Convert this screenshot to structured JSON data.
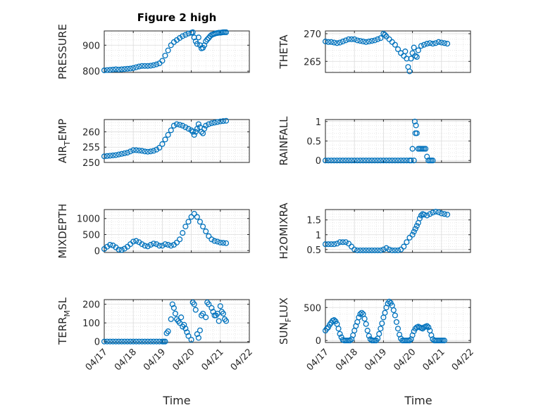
{
  "title": "Figure 2 high",
  "xlabel": "Time",
  "marker_color": "#0072bd",
  "x_tick_labels": [
    "04/17",
    "04/18",
    "04/19",
    "04/20",
    "04/21",
    "04/22"
  ],
  "chart_data": [
    {
      "type": "scatter",
      "ylabel": "PRESSURE",
      "ylim": [
        795,
        955
      ],
      "yticks": [
        800,
        900
      ],
      "xlim": [
        "04/17",
        "04/22"
      ],
      "grid": true,
      "x": [
        0.0,
        0.1,
        0.2,
        0.3,
        0.4,
        0.5,
        0.6,
        0.7,
        0.8,
        0.9,
        1.0,
        1.1,
        1.2,
        1.3,
        1.4,
        1.5,
        1.6,
        1.7,
        1.8,
        1.9,
        2.0,
        2.1,
        2.2,
        2.3,
        2.4,
        2.5,
        2.6,
        2.7,
        2.8,
        2.9,
        3.0,
        3.05,
        3.1,
        3.15,
        3.2,
        3.25,
        3.3,
        3.35,
        3.4,
        3.45,
        3.5,
        3.55,
        3.6,
        3.65,
        3.7,
        3.75,
        3.8,
        3.85,
        3.9,
        3.95,
        4.0,
        4.05,
        4.1,
        4.15,
        4.2
      ],
      "y": [
        803,
        804,
        805,
        806,
        807,
        806,
        807,
        808,
        809,
        810,
        812,
        815,
        818,
        820,
        820,
        820,
        821,
        823,
        826,
        830,
        840,
        860,
        880,
        900,
        912,
        920,
        928,
        935,
        940,
        945,
        948,
        950,
        930,
        915,
        905,
        930,
        900,
        888,
        890,
        900,
        915,
        922,
        928,
        935,
        940,
        942,
        944,
        946,
        947,
        948,
        948,
        949,
        950,
        950,
        950
      ]
    },
    {
      "type": "scatter",
      "ylabel": "THETA",
      "ylim": [
        263,
        270.5
      ],
      "yticks": [
        265,
        270
      ],
      "xlim": [
        "04/17",
        "04/22"
      ],
      "grid": true,
      "x": [
        0.0,
        0.1,
        0.2,
        0.3,
        0.4,
        0.5,
        0.6,
        0.7,
        0.8,
        0.9,
        1.0,
        1.1,
        1.2,
        1.3,
        1.4,
        1.5,
        1.6,
        1.7,
        1.8,
        1.9,
        2.0,
        2.05,
        2.1,
        2.2,
        2.3,
        2.4,
        2.5,
        2.6,
        2.7,
        2.75,
        2.8,
        2.85,
        2.9,
        2.95,
        3.0,
        3.05,
        3.1,
        3.15,
        3.2,
        3.3,
        3.4,
        3.5,
        3.6,
        3.7,
        3.8,
        3.9,
        4.0,
        4.1,
        4.2
      ],
      "y": [
        268.6,
        268.5,
        268.5,
        268.4,
        268.3,
        268.4,
        268.6,
        268.8,
        269.0,
        269.0,
        269.0,
        268.8,
        268.7,
        268.6,
        268.5,
        268.6,
        268.7,
        268.8,
        269.0,
        269.2,
        270.0,
        269.8,
        269.5,
        269.0,
        268.5,
        268.0,
        267.2,
        266.5,
        266.0,
        266.8,
        265.5,
        264.0,
        263.2,
        265.5,
        266.5,
        267.5,
        266.0,
        265.8,
        267.0,
        267.8,
        268.0,
        268.2,
        268.3,
        268.2,
        268.3,
        268.5,
        268.4,
        268.3,
        268.2
      ]
    },
    {
      "type": "scatter",
      "ylabel": "AIR_TEMP",
      "ylim": [
        250,
        264
      ],
      "yticks": [
        250,
        255,
        260
      ],
      "xlim": [
        "04/17",
        "04/22"
      ],
      "grid": true,
      "x": [
        0.0,
        0.1,
        0.2,
        0.3,
        0.4,
        0.5,
        0.6,
        0.7,
        0.8,
        0.9,
        1.0,
        1.1,
        1.2,
        1.3,
        1.4,
        1.5,
        1.6,
        1.7,
        1.8,
        1.9,
        2.0,
        2.1,
        2.2,
        2.3,
        2.4,
        2.5,
        2.6,
        2.7,
        2.8,
        2.9,
        3.0,
        3.05,
        3.1,
        3.15,
        3.2,
        3.25,
        3.3,
        3.35,
        3.4,
        3.45,
        3.5,
        3.6,
        3.7,
        3.8,
        3.9,
        4.0,
        4.1,
        4.2
      ],
      "y": [
        252.0,
        252.1,
        252.2,
        252.3,
        252.4,
        252.6,
        252.8,
        253.0,
        253.2,
        253.6,
        254.0,
        254.0,
        253.9,
        253.8,
        253.6,
        253.5,
        253.6,
        253.8,
        254.2,
        254.8,
        256.0,
        257.5,
        259.0,
        260.5,
        262.0,
        262.5,
        262.3,
        262.0,
        261.5,
        261.0,
        260.5,
        260.0,
        259.0,
        260.0,
        261.0,
        262.5,
        261.5,
        260.0,
        259.5,
        261.0,
        262.0,
        262.5,
        262.8,
        263.0,
        263.2,
        263.4,
        263.5,
        263.6
      ]
    },
    {
      "type": "scatter",
      "ylabel": "RAINFALL",
      "ylim": [
        -0.05,
        1.05
      ],
      "yticks": [
        0,
        0.5,
        1
      ],
      "xlim": [
        "04/17",
        "04/22"
      ],
      "grid": true,
      "x": [
        0.0,
        0.1,
        0.2,
        0.3,
        0.4,
        0.5,
        0.6,
        0.7,
        0.8,
        0.9,
        1.0,
        1.1,
        1.2,
        1.3,
        1.4,
        1.5,
        1.6,
        1.7,
        1.8,
        1.9,
        2.0,
        2.1,
        2.2,
        2.3,
        2.4,
        2.5,
        2.6,
        2.7,
        2.8,
        2.9,
        2.95,
        3.0,
        3.05,
        3.08,
        3.1,
        3.12,
        3.15,
        3.2,
        3.25,
        3.3,
        3.35,
        3.4,
        3.45,
        3.5,
        3.55,
        3.6,
        3.65,
        3.7
      ],
      "y": [
        0,
        0,
        0,
        0,
        0,
        0,
        0,
        0,
        0,
        0,
        0,
        0,
        0,
        0,
        0,
        0,
        0,
        0,
        0,
        0,
        0,
        0,
        0,
        0,
        0,
        0,
        0,
        0,
        0,
        0,
        0,
        0.3,
        0,
        1.0,
        0.7,
        0.9,
        0.7,
        0.3,
        0.3,
        0.3,
        0.3,
        0.3,
        0.3,
        0.1,
        0,
        0,
        0,
        0
      ]
    },
    {
      "type": "scatter",
      "ylabel": "MIXDEPTH",
      "ylim": [
        -60,
        1280
      ],
      "yticks": [
        0,
        500,
        1000
      ],
      "xlim": [
        "04/17",
        "04/22"
      ],
      "grid": true,
      "x": [
        0.0,
        0.1,
        0.2,
        0.3,
        0.4,
        0.5,
        0.6,
        0.7,
        0.8,
        0.9,
        1.0,
        1.1,
        1.2,
        1.3,
        1.4,
        1.5,
        1.6,
        1.7,
        1.8,
        1.9,
        2.0,
        2.1,
        2.2,
        2.3,
        2.4,
        2.5,
        2.6,
        2.7,
        2.8,
        2.9,
        3.0,
        3.1,
        3.2,
        3.3,
        3.4,
        3.5,
        3.6,
        3.7,
        3.8,
        3.9,
        4.0,
        4.1,
        4.2
      ],
      "y": [
        50,
        120,
        180,
        160,
        100,
        30,
        20,
        60,
        120,
        200,
        280,
        300,
        260,
        200,
        150,
        130,
        180,
        220,
        200,
        150,
        150,
        200,
        180,
        150,
        180,
        250,
        350,
        550,
        750,
        900,
        1050,
        1150,
        1050,
        900,
        750,
        600,
        450,
        350,
        300,
        280,
        250,
        240,
        230
      ]
    },
    {
      "type": "scatter",
      "ylabel": "H2OMIXRA",
      "ylim": [
        0.4,
        1.85
      ],
      "yticks": [
        0.5,
        1,
        1.5
      ],
      "xlim": [
        "04/17",
        "04/22"
      ],
      "grid": true,
      "x": [
        0.0,
        0.1,
        0.2,
        0.3,
        0.4,
        0.5,
        0.6,
        0.7,
        0.8,
        0.9,
        1.0,
        1.1,
        1.2,
        1.3,
        1.4,
        1.5,
        1.6,
        1.7,
        1.8,
        1.9,
        2.0,
        2.1,
        2.2,
        2.3,
        2.4,
        2.5,
        2.6,
        2.7,
        2.8,
        2.9,
        3.0,
        3.05,
        3.1,
        3.15,
        3.2,
        3.25,
        3.3,
        3.35,
        3.4,
        3.5,
        3.6,
        3.7,
        3.8,
        3.9,
        4.0,
        4.1,
        4.2
      ],
      "y": [
        0.68,
        0.68,
        0.68,
        0.68,
        0.7,
        0.75,
        0.75,
        0.75,
        0.7,
        0.6,
        0.5,
        0.47,
        0.47,
        0.47,
        0.47,
        0.47,
        0.47,
        0.47,
        0.47,
        0.47,
        0.5,
        0.55,
        0.5,
        0.47,
        0.47,
        0.47,
        0.5,
        0.6,
        0.75,
        0.9,
        1.0,
        1.1,
        1.2,
        1.3,
        1.4,
        1.55,
        1.65,
        1.7,
        1.68,
        1.65,
        1.7,
        1.75,
        1.78,
        1.76,
        1.72,
        1.7,
        1.68
      ]
    },
    {
      "type": "scatter",
      "ylabel": "TERR_MSL",
      "ylim": [
        -5,
        225
      ],
      "yticks": [
        0,
        100,
        200
      ],
      "xlim": [
        "04/17",
        "04/22"
      ],
      "grid": true,
      "x": [
        0.0,
        0.1,
        0.2,
        0.3,
        0.4,
        0.5,
        0.6,
        0.7,
        0.8,
        0.9,
        1.0,
        1.1,
        1.2,
        1.3,
        1.4,
        1.5,
        1.6,
        1.7,
        1.8,
        1.9,
        2.0,
        2.05,
        2.1,
        2.15,
        2.2,
        2.3,
        2.35,
        2.4,
        2.45,
        2.5,
        2.55,
        2.6,
        2.65,
        2.7,
        2.75,
        2.8,
        2.85,
        2.9,
        3.0,
        3.05,
        3.1,
        3.15,
        3.2,
        3.25,
        3.3,
        3.35,
        3.4,
        3.5,
        3.55,
        3.6,
        3.7,
        3.75,
        3.8,
        3.85,
        3.9,
        3.95,
        4.0,
        4.05,
        4.1,
        4.15,
        4.2
      ],
      "y": [
        0,
        0,
        0,
        0,
        0,
        0,
        0,
        0,
        0,
        0,
        0,
        0,
        0,
        0,
        0,
        0,
        0,
        0,
        0,
        0,
        0,
        0,
        0,
        45,
        55,
        120,
        200,
        180,
        150,
        120,
        110,
        100,
        130,
        80,
        90,
        70,
        50,
        30,
        10,
        210,
        200,
        170,
        40,
        20,
        60,
        140,
        150,
        130,
        210,
        200,
        180,
        160,
        140,
        140,
        150,
        110,
        190,
        160,
        150,
        120,
        110
      ]
    },
    {
      "type": "scatter",
      "ylabel": "SUN_FLUX",
      "ylim": [
        -30,
        620
      ],
      "yticks": [
        0,
        500
      ],
      "xlim": [
        "04/17",
        "04/22"
      ],
      "grid": true,
      "x": [
        0.0,
        0.05,
        0.1,
        0.15,
        0.2,
        0.25,
        0.3,
        0.35,
        0.4,
        0.45,
        0.5,
        0.55,
        0.6,
        0.65,
        0.7,
        0.75,
        0.8,
        0.85,
        0.9,
        0.95,
        1.0,
        1.05,
        1.1,
        1.15,
        1.2,
        1.25,
        1.3,
        1.35,
        1.4,
        1.45,
        1.5,
        1.55,
        1.6,
        1.65,
        1.7,
        1.75,
        1.8,
        1.85,
        1.9,
        1.95,
        2.0,
        2.05,
        2.1,
        2.15,
        2.2,
        2.25,
        2.3,
        2.35,
        2.4,
        2.45,
        2.5,
        2.55,
        2.6,
        2.65,
        2.7,
        2.75,
        2.8,
        2.85,
        2.9,
        2.95,
        3.0,
        3.05,
        3.1,
        3.15,
        3.2,
        3.25,
        3.3,
        3.35,
        3.4,
        3.45,
        3.5,
        3.55,
        3.6,
        3.65,
        3.7,
        3.75,
        3.8,
        3.85,
        3.9,
        3.95,
        4.0,
        4.05,
        4.1
      ],
      "y": [
        150,
        180,
        200,
        240,
        270,
        300,
        310,
        290,
        250,
        180,
        100,
        50,
        10,
        0,
        0,
        0,
        0,
        0,
        20,
        80,
        150,
        220,
        280,
        350,
        400,
        420,
        400,
        330,
        250,
        150,
        70,
        20,
        0,
        0,
        0,
        0,
        30,
        100,
        180,
        260,
        350,
        420,
        500,
        560,
        590,
        570,
        530,
        460,
        380,
        280,
        180,
        90,
        30,
        0,
        0,
        0,
        0,
        0,
        0,
        20,
        80,
        140,
        180,
        200,
        210,
        200,
        190,
        180,
        200,
        210,
        220,
        200,
        150,
        80,
        20,
        0,
        0,
        0,
        0,
        0,
        0,
        0,
        0
      ]
    }
  ]
}
